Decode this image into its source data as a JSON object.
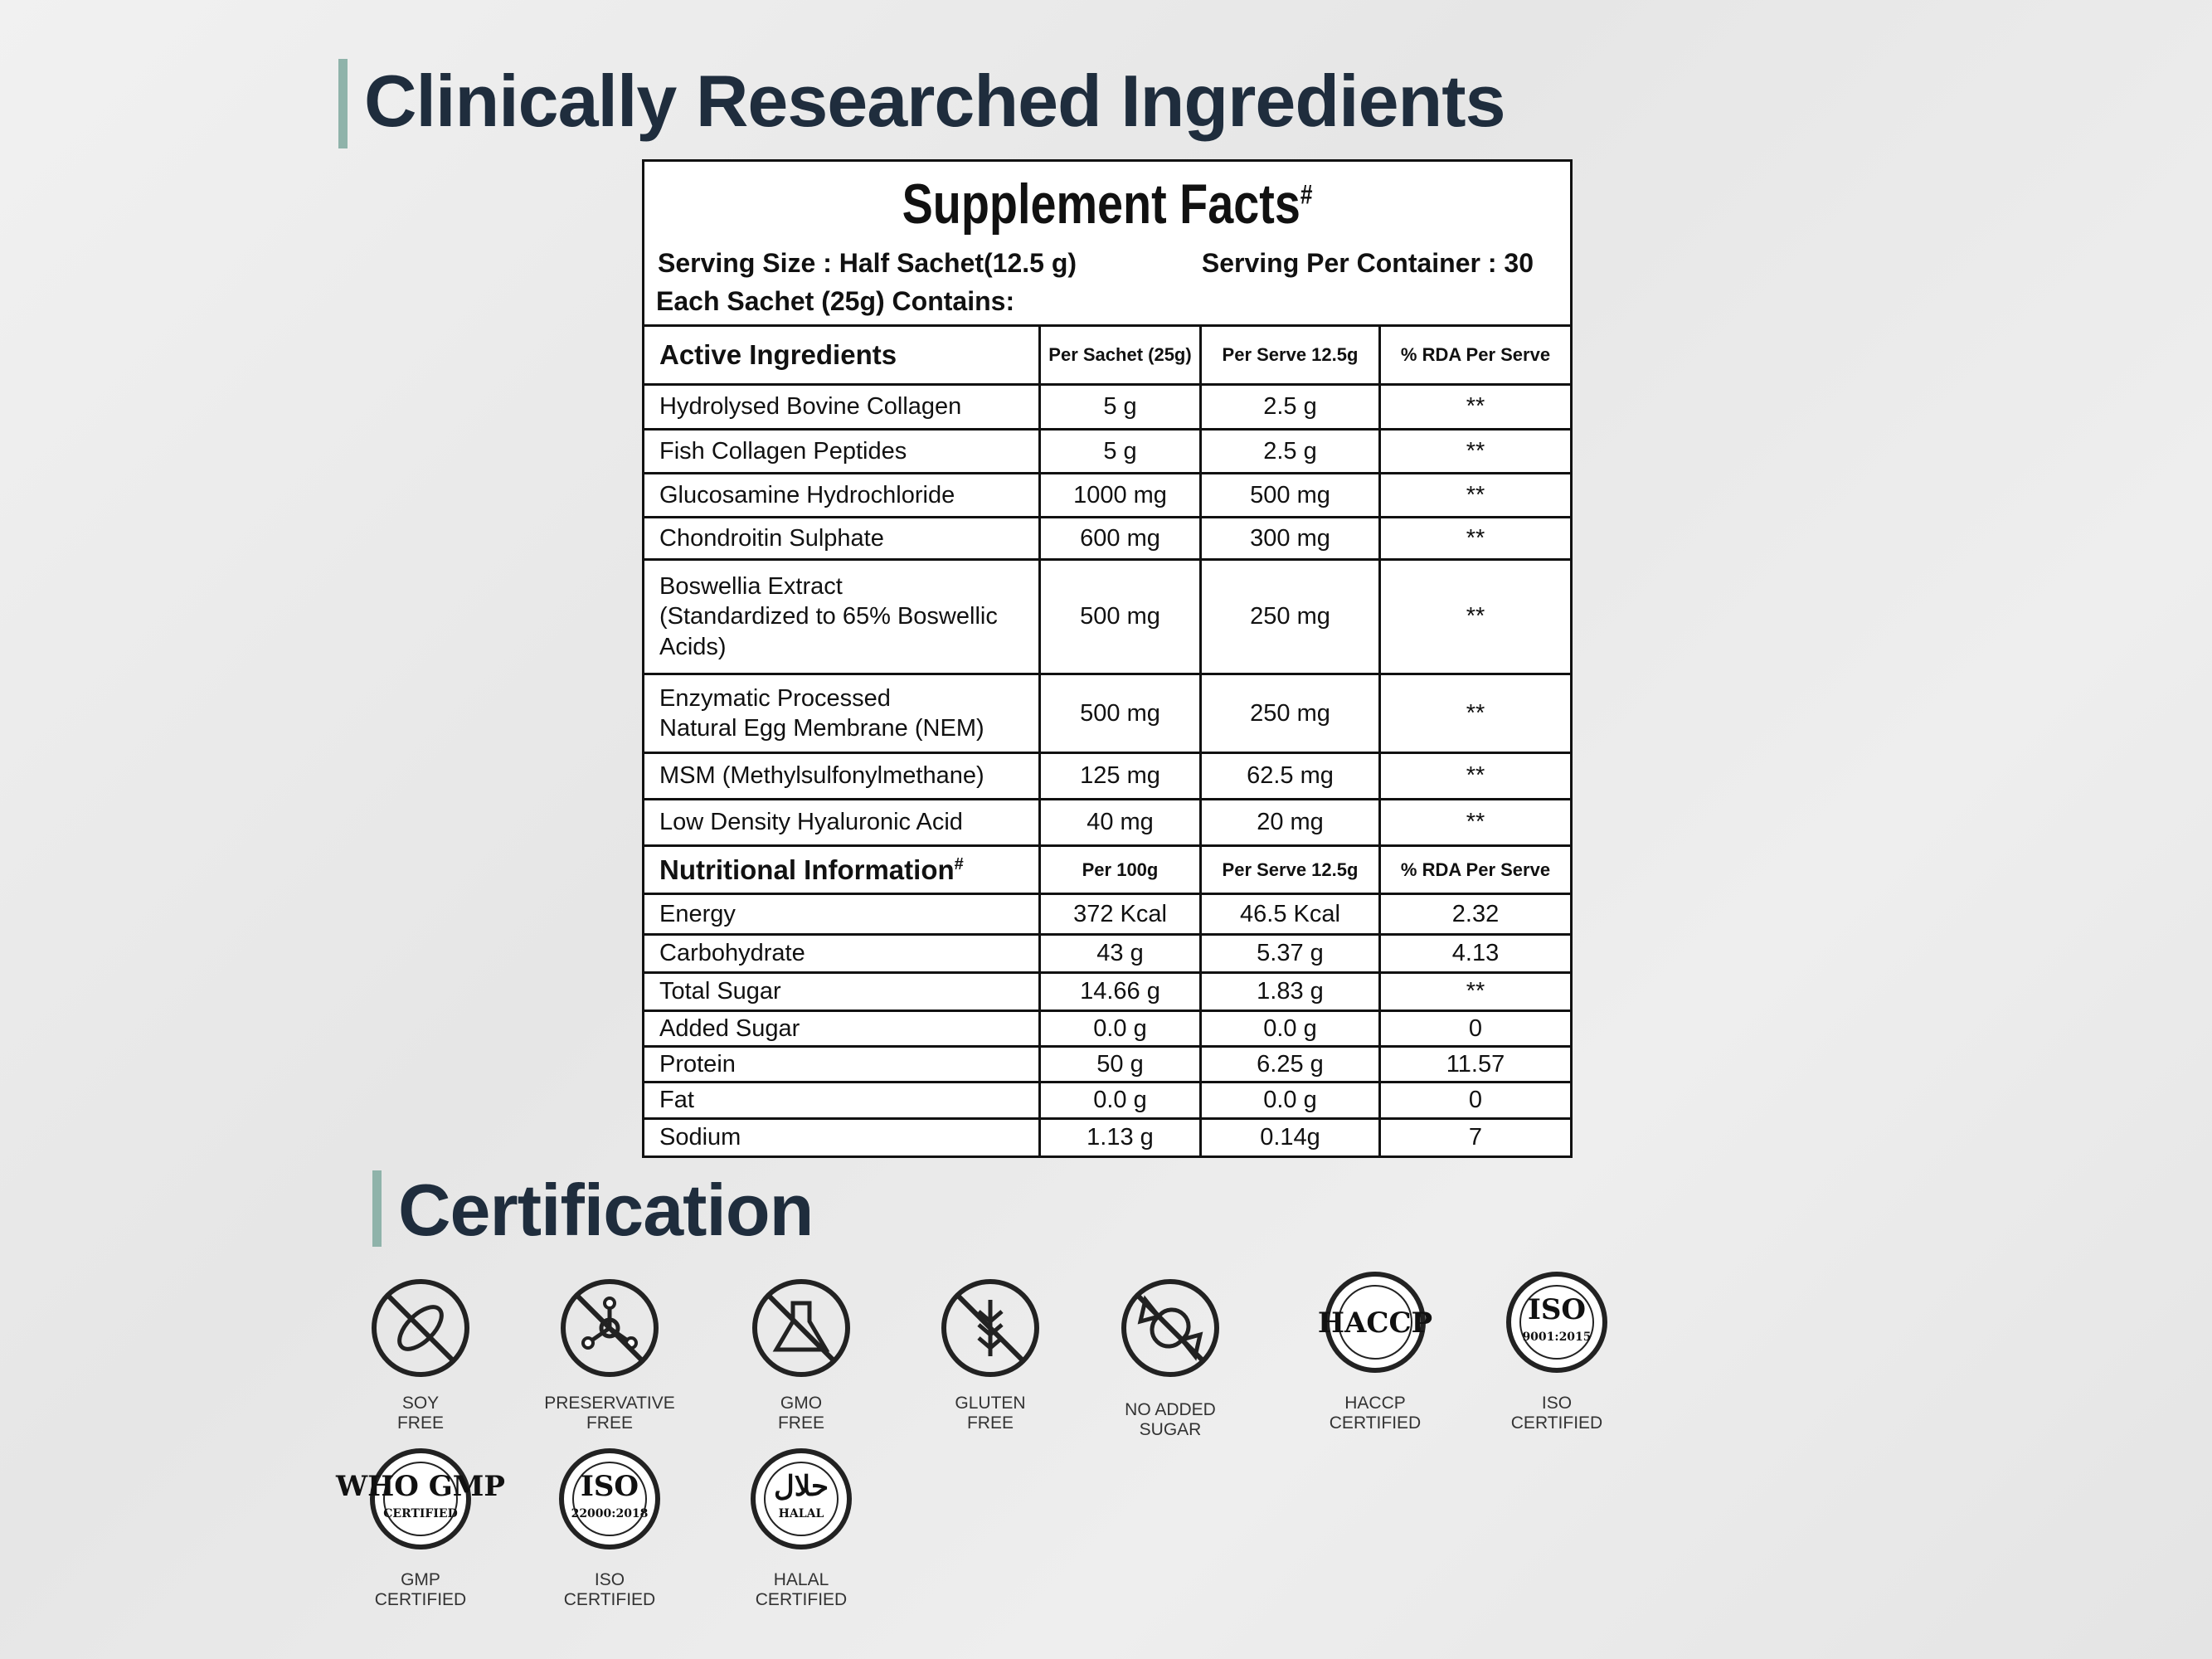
{
  "headings": {
    "ingredients": "Clinically Researched Ingredients",
    "certification": "Certification"
  },
  "supplement_facts": {
    "title": "Supplement Facts",
    "title_mark": "#",
    "serving_size": "Serving Size : Half Sachet(12.5 g)",
    "serving_per_container": "Serving Per Container : 30",
    "each_sachet": "Each Sachet (25g) Contains:",
    "active": {
      "headers": [
        "Active Ingredients",
        "Per Sachet (25g)",
        "Per Serve 12.5g",
        "% RDA Per Serve"
      ],
      "rows": [
        [
          "Hydrolysed Bovine Collagen",
          "5 g",
          "2.5 g",
          "**"
        ],
        [
          "Fish Collagen Peptides",
          "5 g",
          "2.5 g",
          "**"
        ],
        [
          "Glucosamine Hydrochloride",
          "1000 mg",
          "500 mg",
          "**"
        ],
        [
          "Chondroitin Sulphate",
          "600 mg",
          "300 mg",
          "**"
        ],
        [
          "Boswellia Extract\n(Standardized to 65% Boswellic\nAcids)",
          "500 mg",
          "250 mg",
          "**"
        ],
        [
          "Enzymatic Processed\nNatural Egg Membrane (NEM)",
          "500 mg",
          "250 mg",
          "**"
        ],
        [
          "MSM (Methylsulfonylmethane)",
          "125 mg",
          "62.5 mg",
          "**"
        ],
        [
          "Low Density Hyaluronic Acid",
          "40 mg",
          "20 mg",
          "**"
        ]
      ]
    },
    "nutrition": {
      "headers": [
        "Nutritional Information",
        "Per 100g",
        "Per Serve 12.5g",
        "% RDA Per Serve"
      ],
      "header_mark": "#",
      "rows": [
        [
          "Energy",
          "372 Kcal",
          "46.5 Kcal",
          "2.32"
        ],
        [
          "Carbohydrate",
          "43 g",
          "5.37 g",
          "4.13"
        ],
        [
          "Total Sugar",
          "14.66 g",
          "1.83 g",
          "**"
        ],
        [
          "Added Sugar",
          "0.0 g",
          "0.0 g",
          "0"
        ],
        [
          "Protein",
          "50 g",
          "6.25 g",
          "11.57"
        ],
        [
          "Fat",
          "0.0 g",
          "0.0 g",
          "0"
        ],
        [
          "Sodium",
          "1.13 g",
          "0.14g",
          "7"
        ]
      ]
    }
  },
  "certifications": [
    {
      "label": [
        "SOY",
        "FREE"
      ]
    },
    {
      "label": [
        "PRESERVATIVE",
        "FREE"
      ]
    },
    {
      "label": [
        "GMO",
        "FREE"
      ]
    },
    {
      "label": [
        "GLUTEN",
        "FREE"
      ]
    },
    {
      "label": [
        "NO ADDED",
        "SUGAR"
      ]
    },
    {
      "badge": [
        "HACCP"
      ],
      "label": [
        "HACCP",
        "CERTIFIED"
      ]
    },
    {
      "badge": [
        "ISO",
        "9001:2015"
      ],
      "label": [
        "ISO",
        "CERTIFIED"
      ]
    },
    {
      "badge": [
        "WHO GMP",
        "CERTIFIED"
      ],
      "label": [
        "GMP",
        "CERTIFIED"
      ]
    },
    {
      "badge": [
        "ISO",
        "22000:2018"
      ],
      "label": [
        "ISO",
        "CERTIFIED"
      ]
    },
    {
      "badge": [
        "حلال",
        "HALAL"
      ],
      "label": [
        "HALAL",
        "CERTIFIED"
      ]
    }
  ]
}
